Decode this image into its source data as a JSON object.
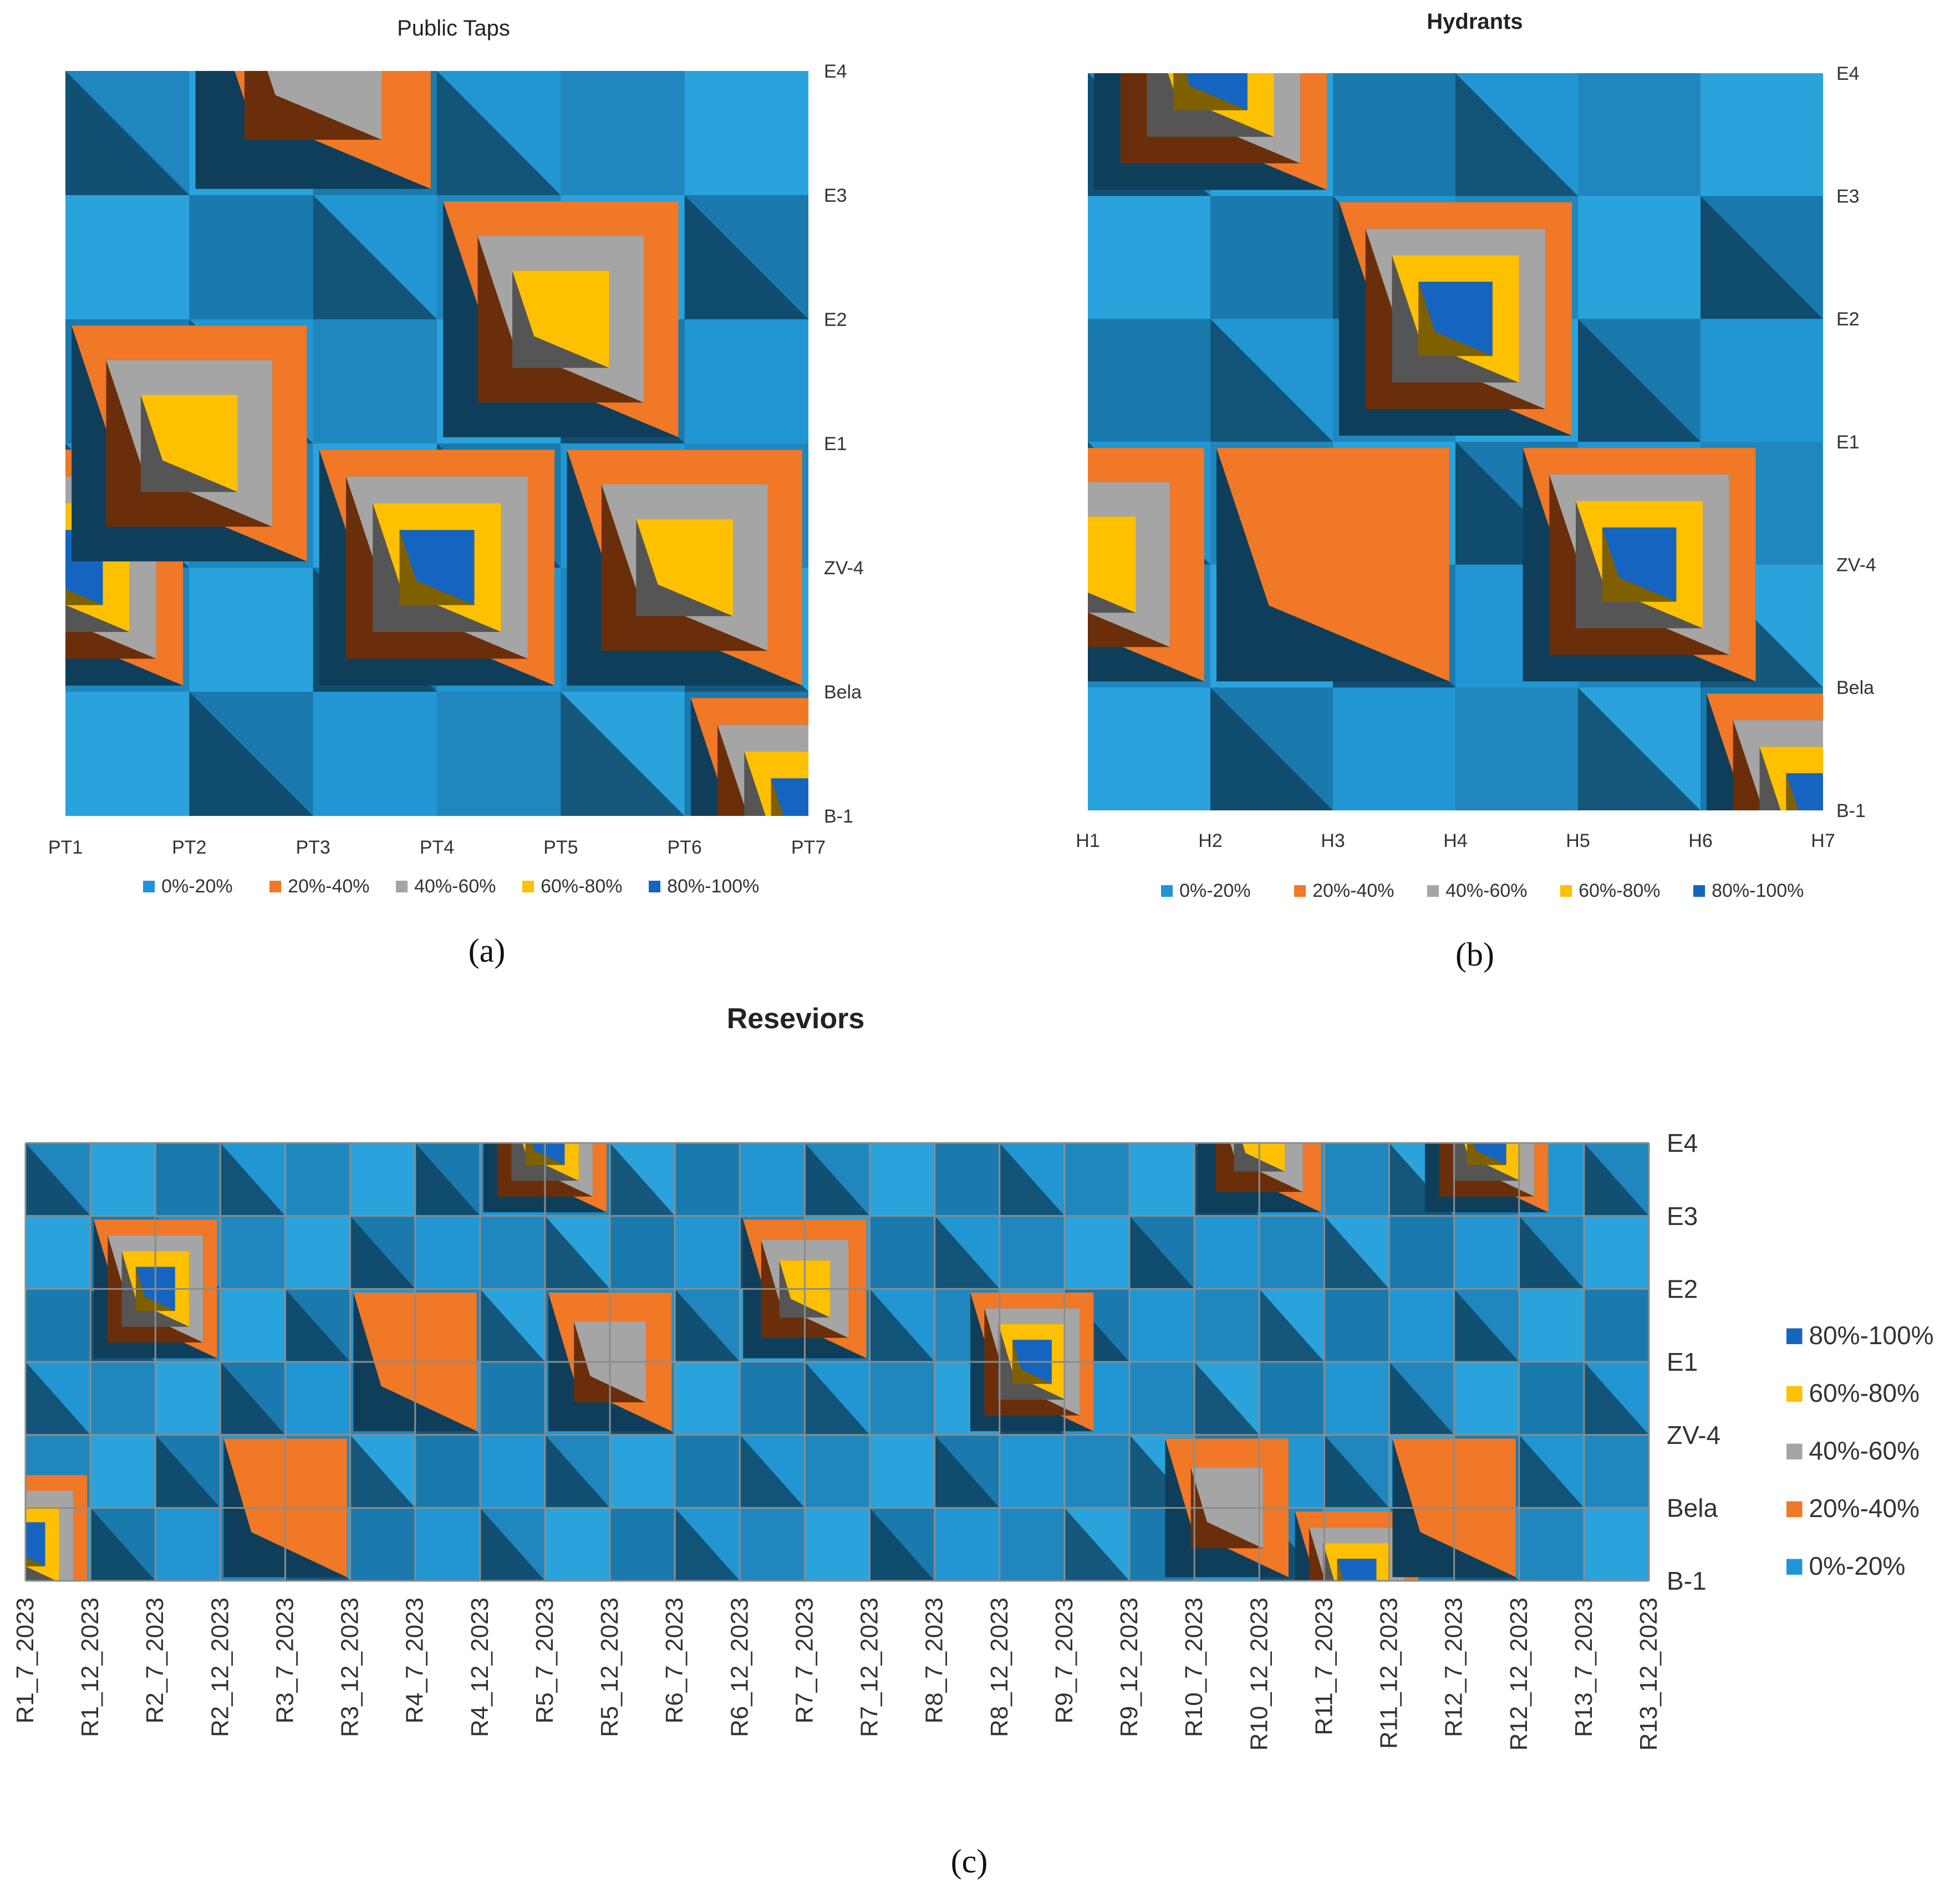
{
  "colors": {
    "0%-20%": "#1E96D6",
    "20%-40%": "#F07826",
    "40%-60%": "#A5A5A5",
    "60%-80%": "#FFC000",
    "80%-100%": "#1565C0",
    "shade_dark": "#0E3E5A",
    "shade_brown": "#6B2E0A",
    "shade_gray": "#555555",
    "shade_olive": "#7F6000",
    "grid": "#8C8C8C"
  },
  "chart_data": [
    {
      "id": "a",
      "type": "contour",
      "title": "Public Taps",
      "caption": "(a)",
      "x_labels": [
        "PT1",
        "PT2",
        "PT3",
        "PT4",
        "PT5",
        "PT6",
        "PT7"
      ],
      "y_labels": [
        "E4",
        "E3",
        "E2",
        "E1",
        "ZV-4",
        "Bela",
        "B-1"
      ],
      "legend": [
        "0%-20%",
        "20%-40%",
        "40%-60%",
        "60%-80%",
        "80%-100%"
      ],
      "hotspots": [
        {
          "x": 3,
          "y": 4,
          "level": 4
        },
        {
          "x": 0,
          "y": 4,
          "level": 4
        },
        {
          "x": 1,
          "y": 3,
          "level": 3
        },
        {
          "x": 4,
          "y": 2,
          "level": 3
        },
        {
          "x": 5,
          "y": 4,
          "level": 3
        },
        {
          "x": 2,
          "y": 0,
          "level": 2
        },
        {
          "x": 6,
          "y": 6,
          "level": 4
        }
      ]
    },
    {
      "id": "b",
      "type": "contour",
      "title": "Hydrants",
      "caption": "(b)",
      "x_labels": [
        "H1",
        "H2",
        "H3",
        "H4",
        "H5",
        "H6",
        "H7"
      ],
      "y_labels": [
        "E4",
        "E3",
        "E2",
        "E1",
        "ZV-4",
        "Bela",
        "B-1"
      ],
      "legend": [
        "0%-20%",
        "20%-40%",
        "40%-60%",
        "60%-80%",
        "80%-100%"
      ],
      "hotspots": [
        {
          "x": 3,
          "y": 2,
          "level": 4
        },
        {
          "x": 1,
          "y": 0,
          "level": 4
        },
        {
          "x": 4.5,
          "y": 4,
          "level": 4
        },
        {
          "x": 0,
          "y": 4,
          "level": 3
        },
        {
          "x": 2,
          "y": 4,
          "level": 1
        },
        {
          "x": 6,
          "y": 6,
          "level": 4
        }
      ]
    },
    {
      "id": "c",
      "type": "contour",
      "title": "Reseviors",
      "caption": "(c)",
      "x_labels": [
        "R1_7_2023",
        "R1_12_2023",
        "R2_7_2023",
        "R2_12_2023",
        "R3_7_2023",
        "R3_12_2023",
        "R4_7_2023",
        "R4_12_2023",
        "R5_7_2023",
        "R5_12_2023",
        "R6_7_2023",
        "R6_12_2023",
        "R7_7_2023",
        "R7_12_2023",
        "R8_7_2023",
        "R8_12_2023",
        "R9_7_2023",
        "R9_12_2023",
        "R10_7_2023",
        "R10_12_2023",
        "R11_7_2023",
        "R11_12_2023",
        "R12_7_2023",
        "R12_12_2023",
        "R13_7_2023",
        "R13_12_2023"
      ],
      "y_labels": [
        "E4",
        "E3",
        "E2",
        "E1",
        "ZV-4",
        "Bela",
        "B-1"
      ],
      "legend": [
        "80%-100%",
        "60%-80%",
        "40%-60%",
        "20%-40%",
        "0%-20%"
      ],
      "hotspots": [
        {
          "x": 2,
          "y": 2,
          "level": 4
        },
        {
          "x": 0,
          "y": 5.5,
          "level": 4
        },
        {
          "x": 15.5,
          "y": 3,
          "level": 4
        },
        {
          "x": 12,
          "y": 2,
          "level": 3
        },
        {
          "x": 8,
          "y": 0,
          "level": 4
        },
        {
          "x": 19,
          "y": 0,
          "level": 3
        },
        {
          "x": 22.5,
          "y": 0,
          "level": 4
        },
        {
          "x": 20.5,
          "y": 6,
          "level": 4
        },
        {
          "x": 9,
          "y": 3,
          "level": 2
        },
        {
          "x": 4,
          "y": 5,
          "level": 1
        },
        {
          "x": 6,
          "y": 3,
          "level": 1
        },
        {
          "x": 18.5,
          "y": 5,
          "level": 2
        },
        {
          "x": 22,
          "y": 5,
          "level": 1
        }
      ]
    }
  ]
}
